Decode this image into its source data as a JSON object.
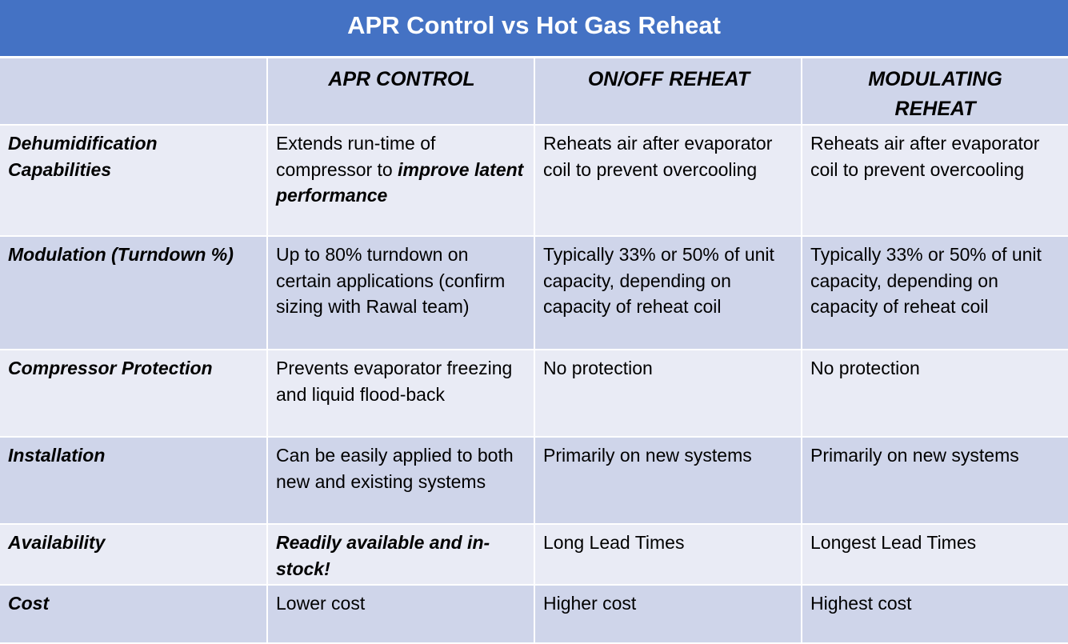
{
  "title": "APR Control vs Hot Gas Reheat",
  "columns": [
    "",
    "APR CONTROL",
    "ON/OFF REHEAT",
    "MODULATING REHEAT"
  ],
  "rows": [
    {
      "label": "Dehumidification Capabilities",
      "apr_plain": "Extends run-time of compressor to ",
      "apr_emphasis": "improve latent performance",
      "onoff": "Reheats air after evaporator coil to prevent overcooling",
      "modulating": "Reheats air after evaporator coil to prevent overcooling"
    },
    {
      "label": "Modulation (Turndown %)",
      "apr": "Up to 80% turndown on certain applications (confirm sizing with Rawal team)",
      "onoff": "Typically 33% or 50% of unit capacity, depending on capacity of reheat coil",
      "modulating": "Typically 33% or 50% of unit capacity, depending on capacity of reheat coil"
    },
    {
      "label": "Compressor Protection",
      "apr": "Prevents evaporator freezing and liquid flood-back",
      "onoff": "No protection",
      "modulating": "No protection"
    },
    {
      "label": "Installation",
      "apr": "Can be easily applied to both new and existing systems",
      "onoff": "Primarily on new systems",
      "modulating": "Primarily on new systems"
    },
    {
      "label": "Availability",
      "apr": "Readily available and in-stock!",
      "onoff": "Long Lead Times",
      "modulating": "Longest Lead Times"
    },
    {
      "label": "Cost",
      "apr": "Lower cost",
      "onoff": "Higher cost",
      "modulating": "Highest cost"
    }
  ]
}
